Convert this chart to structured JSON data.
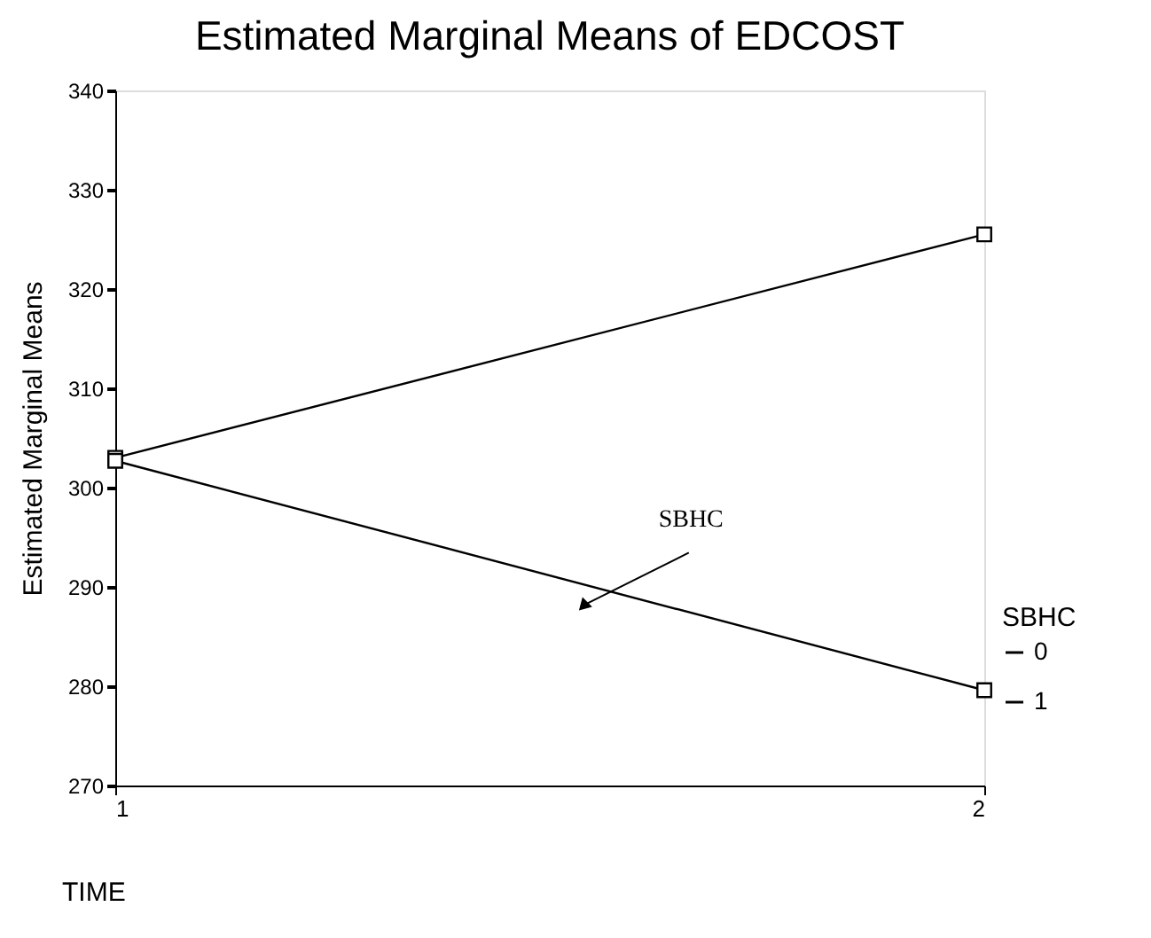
{
  "chart_data": {
    "type": "line",
    "title": "Estimated Marginal Means of EDCOST",
    "xlabel": "TIME",
    "ylabel": "Estimated Marginal Means",
    "legend_title": "SBHC",
    "x": [
      1,
      2
    ],
    "xlim": [
      1,
      2
    ],
    "xticks": [
      {
        "value": 1,
        "label": "1"
      },
      {
        "value": 2,
        "label": "2"
      }
    ],
    "ylim": [
      270,
      340
    ],
    "yticks": [
      270,
      280,
      290,
      300,
      310,
      320,
      330,
      340
    ],
    "series": [
      {
        "name": "0",
        "color": "#000000",
        "values": [
          303,
          325.5
        ]
      },
      {
        "name": "1",
        "color": "#000000",
        "values": [
          302.7,
          279.6
        ]
      }
    ],
    "annotations": [
      {
        "text": "SBHC",
        "x": 1.54,
        "y": 288.2
      }
    ],
    "marker": "square",
    "line_style": "solid",
    "grid": false,
    "legend": "bottom right"
  }
}
